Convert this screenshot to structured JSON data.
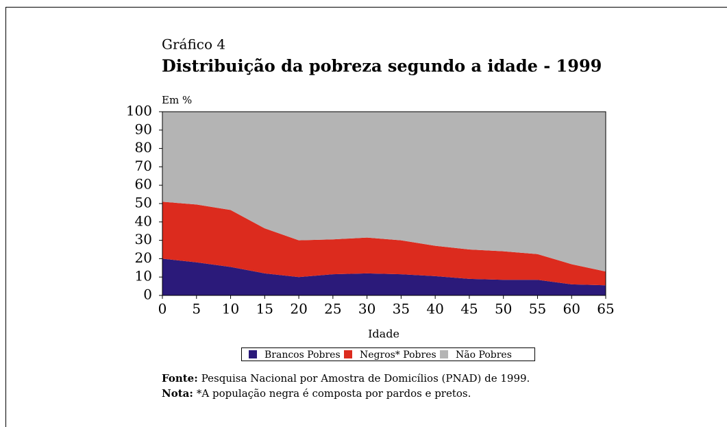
{
  "chart_data": {
    "type": "stacked_area",
    "label": "Gráfico 4",
    "title": "Distribuição da pobreza segundo a idade - 1999",
    "y_unit_label": "Em %",
    "x_label": "Idade",
    "x": [
      0,
      5,
      10,
      15,
      20,
      25,
      30,
      35,
      40,
      45,
      50,
      55,
      60,
      65
    ],
    "series": [
      {
        "name": "Brancos Pobres",
        "color": "#2b1a7a",
        "values": [
          20,
          18,
          15.5,
          12,
          10,
          11.5,
          12,
          11.5,
          10.5,
          9,
          8.5,
          8.5,
          6,
          5.5
        ]
      },
      {
        "name": "Negros* Pobres",
        "color": "#dc2b1e",
        "values": [
          31,
          31.5,
          31,
          24.5,
          20,
          19,
          19.5,
          18.5,
          16.5,
          16,
          15.5,
          14,
          11,
          7.5
        ]
      },
      {
        "name": "Não Pobres",
        "color": "#b4b4b4",
        "values": [
          49,
          50.5,
          53.5,
          63.5,
          70,
          69.5,
          68.5,
          70,
          73,
          75,
          76,
          77.5,
          83,
          87
        ]
      }
    ],
    "xlim": [
      0,
      65
    ],
    "xticks": [
      0,
      5,
      10,
      15,
      20,
      25,
      30,
      35,
      40,
      45,
      50,
      55,
      60,
      65
    ],
    "ylim": [
      0,
      100
    ],
    "yticks": [
      0,
      10,
      20,
      30,
      40,
      50,
      60,
      70,
      80,
      90,
      100
    ],
    "legend": "bottom",
    "notes": [
      {
        "label": "Fonte:",
        "text": "Pesquisa Nacional por Amostra de Domicílios (PNAD) de 1999."
      },
      {
        "label": "Nota:",
        "text": "*A população negra é composta por pardos e pretos."
      }
    ]
  }
}
